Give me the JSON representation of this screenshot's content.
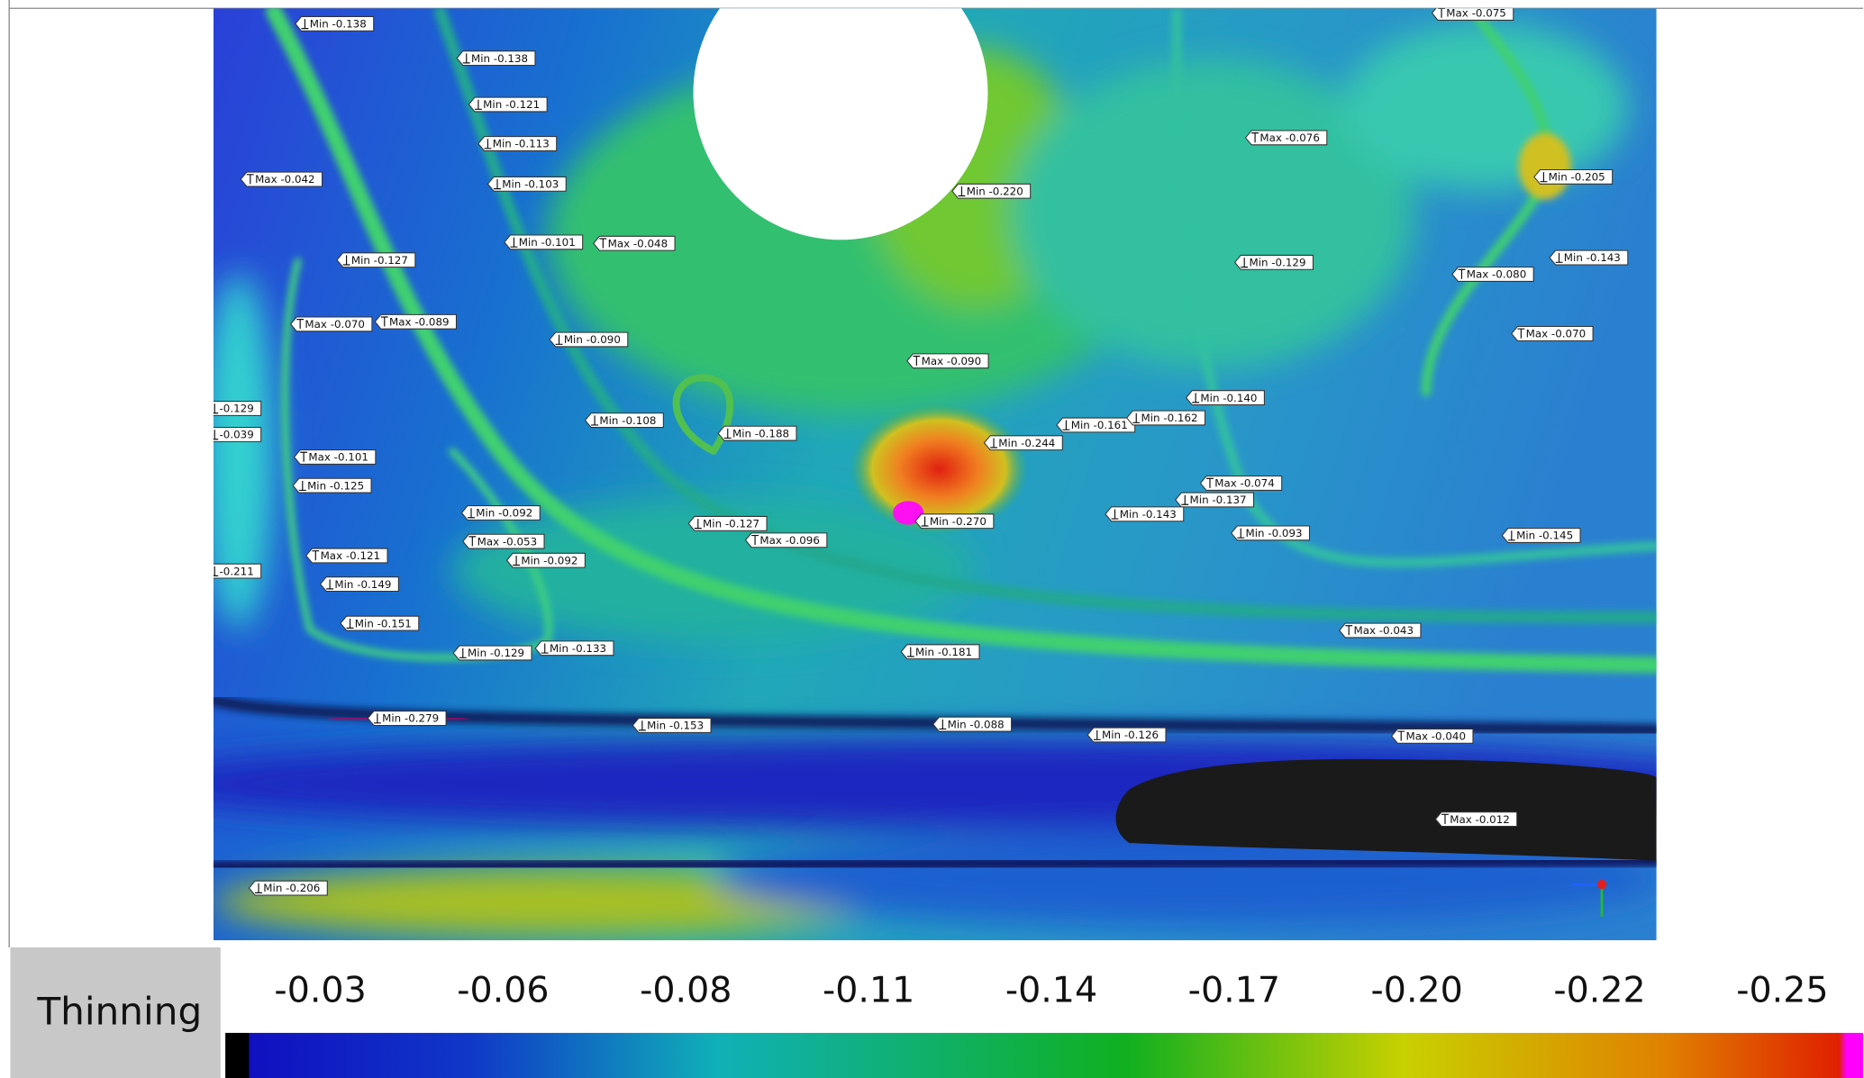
{
  "viewer": {
    "annotations": [
      "Min -0.138",
      "Min -0.138",
      "Min -0.121",
      "Min -0.113",
      "Min -0.103",
      "Max -0.042",
      "Min -0.220",
      "Max -0.076",
      "Min -0.205",
      "Max -0.075",
      "Min -0.101",
      "Max -0.048",
      "Min -0.127",
      "Min -0.129",
      "Max -0.080",
      "Min -0.143",
      "Max -0.070",
      "Max -0.089",
      "Min -0.090",
      "Max -0.090",
      "Max -0.070",
      "Min -0.140",
      "Min -0.108",
      "Min -0.188",
      "Min -0.161",
      "Min -0.162",
      "Min -0.244",
      "Max -0.101",
      "Min -0.125",
      "Max -0.074",
      "Min -0.137",
      "Min -0.143",
      "Min -0.092",
      "Max -0.053",
      "Min -0.092",
      "Min -0.127",
      "Max -0.096",
      "Min -0.270",
      "Min -0.093",
      "Min -0.145",
      "Max -0.121",
      "Min -0.149",
      "Min -0.151",
      "Min -0.129",
      "Min -0.133",
      "Min -0.181",
      "Max -0.043",
      "Min -0.279",
      "Min -0.153",
      "Min -0.088",
      "Min -0.126",
      "Max -0.040",
      "Max -0.012",
      "Min -0.206",
      "-0.129",
      "-0.039",
      "-0.211"
    ],
    "legend": {
      "title": "Thinning",
      "labels": [
        "-0.03",
        "-0.06",
        "-0.08",
        "-0.11",
        "-0.14",
        "-0.17",
        "-0.20",
        "-0.22",
        "-0.25"
      ]
    }
  }
}
